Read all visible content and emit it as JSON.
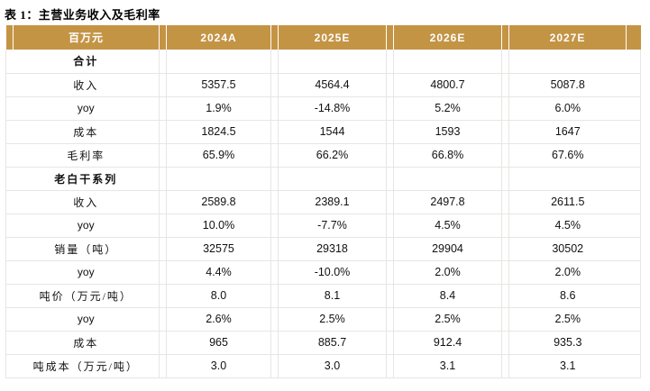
{
  "title": "表 1：主营业务收入及毛利率",
  "colors": {
    "header_bg": "#C49445",
    "header_text": "#FFFFFF",
    "grid_line": "#E8E6E3",
    "body_text": "#111111"
  },
  "table": {
    "unit_header": "百万元",
    "columns": [
      "2024A",
      "2025E",
      "2026E",
      "2027E"
    ],
    "rows": [
      {
        "label": "合计",
        "section": true,
        "values": [
          "",
          "",
          "",
          ""
        ]
      },
      {
        "label": "收入",
        "section": false,
        "values": [
          "5357.5",
          "4564.4",
          "4800.7",
          "5087.8"
        ]
      },
      {
        "label": "yoy",
        "section": false,
        "values": [
          "1.9%",
          "-14.8%",
          "5.2%",
          "6.0%"
        ]
      },
      {
        "label": "成本",
        "section": false,
        "values": [
          "1824.5",
          "1544",
          "1593",
          "1647"
        ]
      },
      {
        "label": "毛利率",
        "section": false,
        "values": [
          "65.9%",
          "66.2%",
          "66.8%",
          "67.6%"
        ]
      },
      {
        "label": "老白干系列",
        "section": true,
        "values": [
          "",
          "",
          "",
          ""
        ]
      },
      {
        "label": "收入",
        "section": false,
        "values": [
          "2589.8",
          "2389.1",
          "2497.8",
          "2611.5"
        ]
      },
      {
        "label": "yoy",
        "section": false,
        "values": [
          "10.0%",
          "-7.7%",
          "4.5%",
          "4.5%"
        ]
      },
      {
        "label": "销量（吨）",
        "section": false,
        "values": [
          "32575",
          "29318",
          "29904",
          "30502"
        ]
      },
      {
        "label": "yoy",
        "section": false,
        "values": [
          "4.4%",
          "-10.0%",
          "2.0%",
          "2.0%"
        ]
      },
      {
        "label": "吨价（万元/吨）",
        "section": false,
        "values": [
          "8.0",
          "8.1",
          "8.4",
          "8.6"
        ]
      },
      {
        "label": "yoy",
        "section": false,
        "values": [
          "2.6%",
          "2.5%",
          "2.5%",
          "2.5%"
        ]
      },
      {
        "label": "成本",
        "section": false,
        "values": [
          "965",
          "885.7",
          "912.4",
          "935.3"
        ]
      },
      {
        "label": "吨成本（万元/吨）",
        "section": false,
        "values": [
          "3.0",
          "3.0",
          "3.1",
          "3.1"
        ]
      }
    ]
  }
}
